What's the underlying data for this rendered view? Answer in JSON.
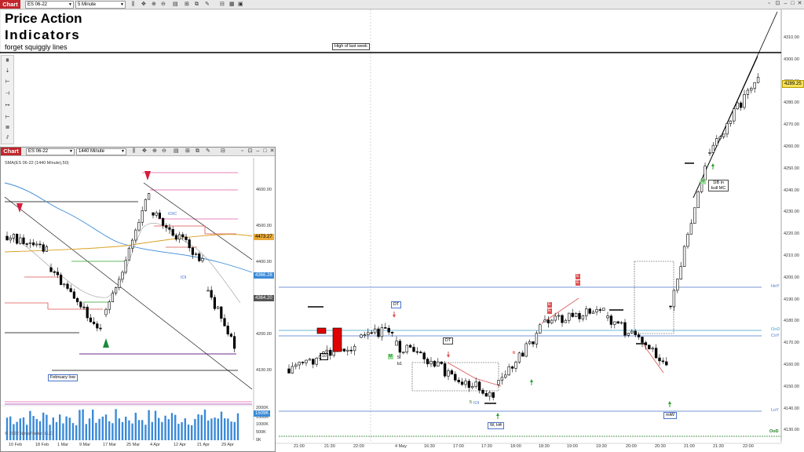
{
  "main": {
    "tab": "Chart",
    "instrument": "ES 06-22",
    "interval": "5 Minute",
    "title1": "Price Action",
    "title2": "Indicators",
    "subtitle": "forget squiggly lines",
    "price_labels": [
      "4310.00",
      "4300.00",
      "4290.00",
      "4280.00",
      "4270.00",
      "4260.00",
      "4250.00",
      "4240.00",
      "4230.00",
      "4220.00",
      "4210.00",
      "4200.00",
      "4190.00",
      "4180.00",
      "4170.00",
      "4160.00",
      "4150.00",
      "4140.00",
      "4130.00"
    ],
    "current_price": "4289.25",
    "time_labels": [
      "21:00",
      "21:30",
      "22:00",
      "4 May",
      "16:30",
      "17:00",
      "17:30",
      "18:00",
      "18:30",
      "19:00",
      "19:30",
      "20:00",
      "20:30",
      "21:00",
      "21:30",
      "22:00"
    ],
    "level_labels": {
      "hoy": "HoY",
      "oyd": "OoD",
      "coy": "CoY",
      "loy": "LoY",
      "ood2": "OoD"
    },
    "annotations": {
      "high_last_week": "High of last week",
      "dt1": "DT",
      "dt2": "DT",
      "w_h4": "W, H4",
      "ib": "1IB in bull MC",
      "miw": "miW",
      "m1": "M",
      "m2": "M",
      "fivet": "5t",
      "b1": "b1",
      "five": "5",
      "iol": "IOI",
      "ten": "10",
      "tt": "tt",
      "e1": "E",
      "e2": "E",
      "e3": "E",
      "e4": "E"
    },
    "colors": {
      "bull": "#ffffff",
      "bear": "#000000",
      "blue_line": "#4a74c9",
      "red_bar": "#e00000",
      "green": "#2ca02c"
    }
  },
  "inset": {
    "tab": "Chart",
    "instrument": "ES 06-22",
    "interval": "1440 Minute",
    "indicator": "SMA(ES 06-22 (1440 Minute),50)",
    "price_labels": [
      "4600.00",
      "4500.00",
      "4400.00",
      "4300.00",
      "4200.00",
      "4100.00"
    ],
    "price_boxes": {
      "orange": "4473.27",
      "blue": "4366.28",
      "dark": "4364.20"
    },
    "volume_labels": [
      "2000K",
      "1500K",
      "1000K",
      "500K",
      "0K"
    ],
    "volume_box": "1509K",
    "time_labels": [
      "10 Feb",
      "18 Feb",
      "1 Mar",
      "9 Mar",
      "17 Mar",
      "25 Mar",
      "4 Apr",
      "12 Apr",
      "21 Apr",
      "29 Apr"
    ],
    "annotations": {
      "feb_low": "February low",
      "ioc": "IOIC",
      "iol": "IOI"
    },
    "copyright": "© 2022 NinjaTrader, LLC"
  }
}
